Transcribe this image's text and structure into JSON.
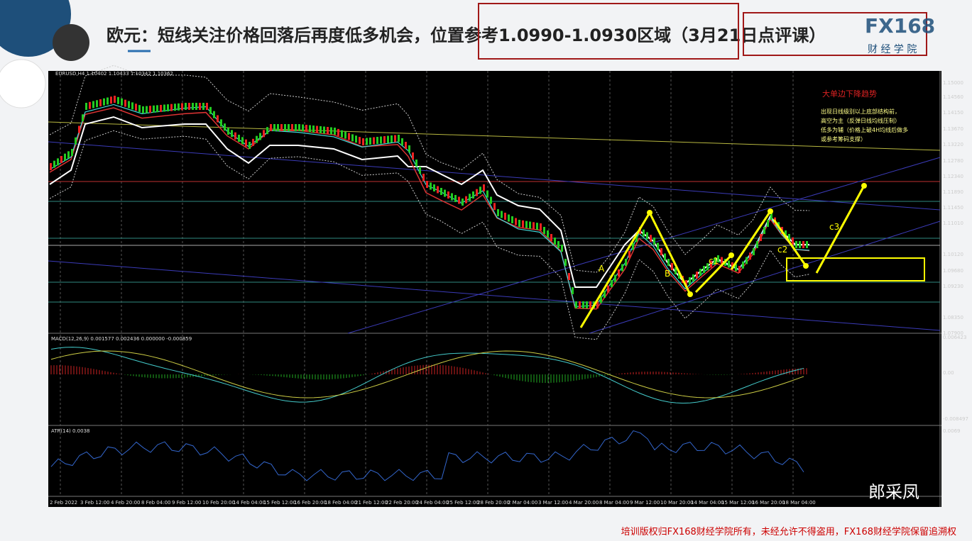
{
  "header": {
    "title": "欧元：短线关注价格回落后再度低多机会，位置参考1.0990-1.0930区域（3月21日点评课）",
    "logo": "FX168",
    "logo_sub": "财 经 学 院"
  },
  "chart": {
    "symbol_info": "EURUSD,H4  1.10402 1.10433 1.10342 1.10362",
    "price_ticks": [
      "1.15000",
      "1.14560",
      "1.14150",
      "1.13670",
      "1.13220",
      "1.12780",
      "1.12340",
      "1.11890",
      "1.11450",
      "1.11010",
      "1.10120",
      "1.09680",
      "1.09230",
      "1.08350",
      "1.07900"
    ],
    "macd_info": "MACD(12,26,9) 0.001577 0.002436 0.000000 -0.000859",
    "macd_ticks": [
      "0.006423",
      "0.00",
      "-0.008497"
    ],
    "atr_info": "ATR(14) 0.0038",
    "atr_ticks": [
      "0.0069"
    ],
    "dates": [
      "2 Feb 2022",
      "3 Feb 12:00",
      "4 Feb 20:00",
      "8 Feb 04:00",
      "9 Feb 12:00",
      "10 Feb 20:00",
      "14 Feb 04:00",
      "15 Feb 12:00",
      "16 Feb 20:00",
      "18 Feb 04:00",
      "21 Feb 12:00",
      "22 Feb 20:00",
      "24 Feb 04:00",
      "25 Feb 12:00",
      "28 Feb 20:00",
      "2 Mar 04:00",
      "3 Mar 12:00",
      "4 Mar 20:00",
      "8 Mar 04:00",
      "9 Mar 12:00",
      "10 Mar 20:00",
      "14 Mar 04:00",
      "15 Mar 12:00",
      "16 Mar 20:00",
      "18 Mar 04:00"
    ],
    "annotation_title": "大单边下降趋势",
    "annotation_lines": [
      "出现日线级别以上底部结构前，",
      "高空为主（反弹日线均线压制）",
      "低多为辅（价格上破4H均线后做多",
      "或参考筹码支撑）"
    ],
    "wave_labels": [
      "A",
      "B",
      "c1",
      "c2",
      "c3"
    ]
  },
  "watermark": "郎采凤",
  "footer": "培训版权归FX168财经学院所有，未经允许不得盗用，FX168财经学院保留追溯权"
}
